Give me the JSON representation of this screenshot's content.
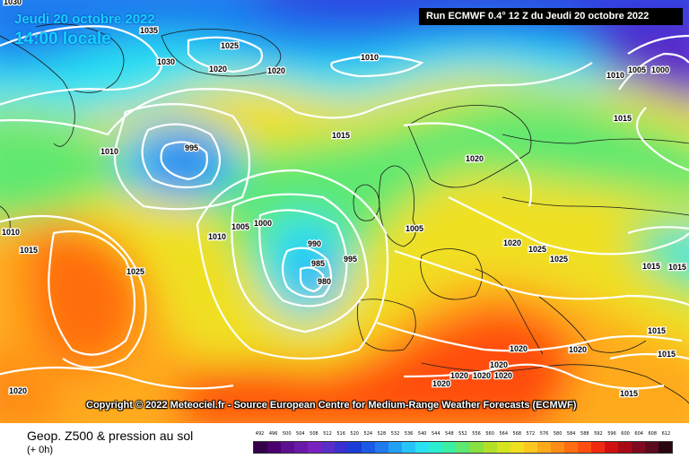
{
  "header": {
    "date": "Jeudi 20 octobre 2022",
    "time": "14:00 locale",
    "run": "Run ECMWF 0.4° 12 Z du Jeudi 20 octobre 2022"
  },
  "copyright": "Copyright © 2022 Meteociel.fr - Source European Centre for Medium-Range Weather Forecasts (ECMWF)",
  "legend": {
    "title": "Geop. Z500 & pression au sol",
    "subtitle": "(+ 0h)",
    "scale": [
      {
        "value": "492",
        "color": "#34004a"
      },
      {
        "value": "496",
        "color": "#4a006e"
      },
      {
        "value": "500",
        "color": "#5c1090"
      },
      {
        "value": "504",
        "color": "#6a1aa8"
      },
      {
        "value": "508",
        "color": "#7a22c0"
      },
      {
        "value": "512",
        "color": "#5a2cc8"
      },
      {
        "value": "516",
        "color": "#3a30d0"
      },
      {
        "value": "520",
        "color": "#1a3cd8"
      },
      {
        "value": "524",
        "color": "#1a5ae4"
      },
      {
        "value": "528",
        "color": "#1e7cee"
      },
      {
        "value": "532",
        "color": "#22a0f6"
      },
      {
        "value": "536",
        "color": "#26c4fa"
      },
      {
        "value": "540",
        "color": "#2ae2f2"
      },
      {
        "value": "544",
        "color": "#2aeed0"
      },
      {
        "value": "548",
        "color": "#3aeea4"
      },
      {
        "value": "552",
        "color": "#5ee870"
      },
      {
        "value": "556",
        "color": "#8ae040"
      },
      {
        "value": "560",
        "color": "#b2e028"
      },
      {
        "value": "564",
        "color": "#d6e420"
      },
      {
        "value": "568",
        "color": "#f0e020"
      },
      {
        "value": "572",
        "color": "#fcc820"
      },
      {
        "value": "576",
        "color": "#ffaa1a"
      },
      {
        "value": "580",
        "color": "#ff8c14"
      },
      {
        "value": "584",
        "color": "#ff6e10"
      },
      {
        "value": "588",
        "color": "#ff4e10"
      },
      {
        "value": "592",
        "color": "#f02a10"
      },
      {
        "value": "596",
        "color": "#d01010"
      },
      {
        "value": "600",
        "color": "#a80a14"
      },
      {
        "value": "604",
        "color": "#800a20"
      },
      {
        "value": "608",
        "color": "#5c0a1e"
      },
      {
        "value": "612",
        "color": "#2a0610"
      }
    ]
  },
  "isobars": {
    "labels": [
      "1030",
      "1035",
      "1025",
      "1030",
      "1020",
      "1020",
      "1010",
      "1010",
      "1005",
      "1000",
      "1010",
      "995",
      "1015",
      "1020",
      "1015",
      "1010",
      "1015",
      "1025",
      "1010",
      "1005",
      "1000",
      "990",
      "995",
      "985",
      "980",
      "1005",
      "1020",
      "1025",
      "1025",
      "1015",
      "1015",
      "1020",
      "1020",
      "1020",
      "1020",
      "1020",
      "1020",
      "1015",
      "1015",
      "1015",
      "1020",
      "1020"
    ]
  },
  "map": {
    "colors": {
      "deep_blue": "#2a3ce0",
      "blue": "#1e7cee",
      "cyan": "#2ae2f2",
      "green": "#5ee870",
      "yellow": "#f0e020",
      "orange": "#ff8c14",
      "red": "#f02a10",
      "purple": "#6a1aa8",
      "isobar": "#ffffff",
      "coast": "#1a1a1a"
    }
  }
}
